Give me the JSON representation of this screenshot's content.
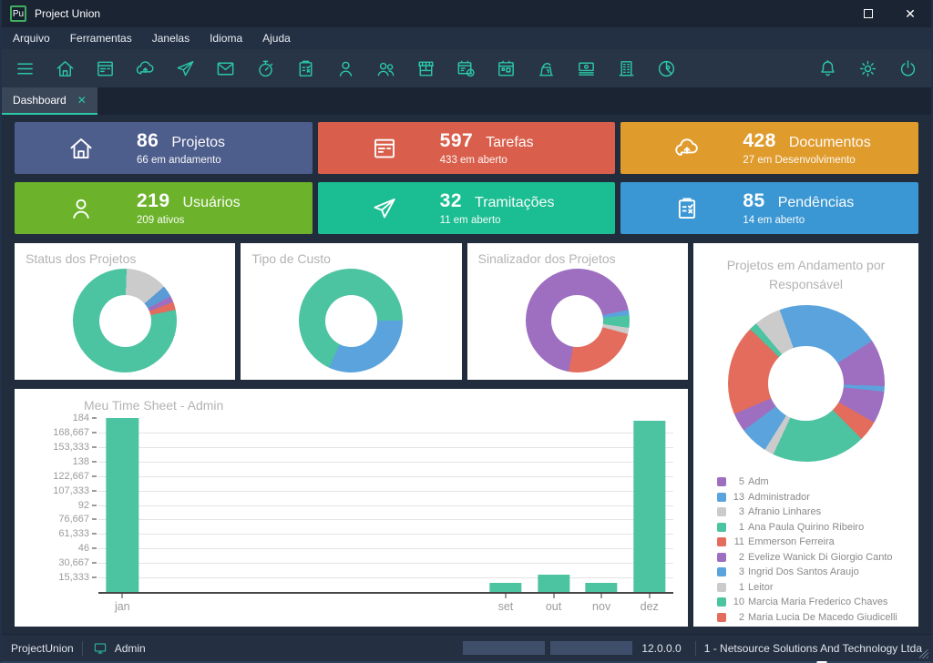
{
  "window": {
    "title": "Project Union",
    "logo_text": "Pu",
    "controls": [
      {
        "name": "minimize",
        "glyph": "─"
      },
      {
        "name": "maximize",
        "glyph": "□"
      },
      {
        "name": "close",
        "glyph": "✕"
      }
    ]
  },
  "menu_bar": {
    "items": [
      "Arquivo",
      "Ferramentas",
      "Janelas",
      "Idioma",
      "Ajuda"
    ]
  },
  "toolbar": {
    "accent_color": "#2cc7a5",
    "left_icons": [
      "hamburger-icon",
      "home-icon",
      "tasks-icon",
      "cloud-upload-icon",
      "send-icon",
      "mail-icon",
      "stopwatch-icon",
      "clipboard-icon",
      "user-icon",
      "users-icon",
      "store-icon",
      "schedule-icon",
      "calendar-icon",
      "meter-icon",
      "money-icon",
      "building-icon",
      "pie-chart-icon"
    ],
    "right_icons": [
      "bell-icon",
      "settings-icon",
      "power-icon"
    ]
  },
  "tabs": [
    {
      "label": "Dashboard",
      "active": true
    }
  ],
  "stat_cards": [
    {
      "icon": "home-icon",
      "value": "86",
      "label": "Projetos",
      "sub": "66 em andamento",
      "color": "#4d5d8c"
    },
    {
      "icon": "tasks-icon",
      "value": "597",
      "label": "Tarefas",
      "sub": "433 em aberto",
      "color": "#d95f4c"
    },
    {
      "icon": "cloud-upload-icon",
      "value": "428",
      "label": "Documentos",
      "sub": "27 em Desenvolvimento",
      "color": "#e09b2d"
    },
    {
      "icon": "user-icon",
      "value": "219",
      "label": "Usuários",
      "sub": "209 ativos",
      "color": "#6cb32b"
    },
    {
      "icon": "send-icon",
      "value": "32",
      "label": "Tramitações",
      "sub": "11 em aberto",
      "color": "#1bbd92"
    },
    {
      "icon": "clipboard-icon",
      "value": "85",
      "label": "Pendências",
      "sub": "14 em aberto",
      "color": "#3b97d3"
    }
  ],
  "chart_data": [
    {
      "type": "pie",
      "donut": true,
      "title": "Status dos Projetos",
      "rotate_deg": 2,
      "segments": [
        {
          "color": "#cbcbcb",
          "deg": 47
        },
        {
          "color": "#5b9bd5",
          "deg": 13
        },
        {
          "color": "#9e6fc0",
          "deg": 7
        },
        {
          "color": "#e36c5c",
          "deg": 9
        },
        {
          "color": "#4cc3a1",
          "deg": 284
        }
      ]
    },
    {
      "type": "pie",
      "donut": true,
      "title": "Tipo de Custo",
      "rotate_deg": 90,
      "segments": [
        {
          "color": "#5ba3dc",
          "deg": 115
        },
        {
          "color": "#4cc3a1",
          "deg": 245
        }
      ]
    },
    {
      "type": "pie",
      "donut": true,
      "title": "Sinalizador dos Projetos",
      "rotate_deg": 78,
      "segments": [
        {
          "color": "#5ba3dc",
          "deg": 6
        },
        {
          "color": "#4cc3a1",
          "deg": 14
        },
        {
          "color": "#cbcbcb",
          "deg": 7
        },
        {
          "color": "#e36c5c",
          "deg": 85
        },
        {
          "color": "#9e6fc0",
          "deg": 248
        }
      ]
    },
    {
      "type": "pie",
      "donut": true,
      "title": "Projetos em Andamento por  Responsável",
      "rotate_deg": 340,
      "segments": [
        {
          "color": "#5ba3dc",
          "deg": 77
        },
        {
          "color": "#9e6fc0",
          "deg": 35
        },
        {
          "color": "#5ba3dc",
          "deg": 4
        },
        {
          "color": "#9e6fc0",
          "deg": 24
        },
        {
          "color": "#e36c5c",
          "deg": 15
        },
        {
          "color": "#4cc3a1",
          "deg": 70
        },
        {
          "color": "#cbcbcb",
          "deg": 7
        },
        {
          "color": "#5ba3dc",
          "deg": 21
        },
        {
          "color": "#9e6fc0",
          "deg": 14
        },
        {
          "color": "#e36c5c",
          "deg": 67
        },
        {
          "color": "#4cc3a1",
          "deg": 6
        },
        {
          "color": "#cbcbcb",
          "deg": 20
        }
      ],
      "legend": [
        {
          "count": 5,
          "name": "Adm",
          "color": "#9e6fc0"
        },
        {
          "count": 13,
          "name": "Administrador",
          "color": "#5ba3dc"
        },
        {
          "count": 3,
          "name": "Afranio Linhares",
          "color": "#cbcbcb"
        },
        {
          "count": 1,
          "name": "Ana Paula Quirino Ribeiro",
          "color": "#4cc3a1"
        },
        {
          "count": 11,
          "name": "Emmerson Ferreira",
          "color": "#e36c5c"
        },
        {
          "count": 2,
          "name": "Evelize Wanick  Di Giorgio Canto",
          "color": "#9e6fc0"
        },
        {
          "count": 3,
          "name": "Ingrid Dos Santos Araujo",
          "color": "#5ba3dc"
        },
        {
          "count": 1,
          "name": "Leitor",
          "color": "#cbcbcb"
        },
        {
          "count": 10,
          "name": "Marcia Maria Frederico Chaves",
          "color": "#4cc3a1"
        },
        {
          "count": 2,
          "name": "Maria Lucia De Macedo Giudicelli",
          "color": "#e36c5c"
        }
      ]
    },
    {
      "type": "bar",
      "title": "Meu Time Sheet - Admin",
      "bar_color": "#4cc3a1",
      "ylim": [
        0,
        184
      ],
      "slots": 12,
      "y_ticks": [
        "184",
        "168,667",
        "153,333",
        "138",
        "122,667",
        "107,333",
        "92",
        "76,667",
        "61,333",
        "46",
        "30,667",
        "15,333"
      ],
      "bars": [
        {
          "label": "jan",
          "slot": 0,
          "value": 184
        },
        {
          "label": "set",
          "slot": 8,
          "value": 10
        },
        {
          "label": "out",
          "slot": 9,
          "value": 18
        },
        {
          "label": "nov",
          "slot": 10,
          "value": 10
        },
        {
          "label": "dez",
          "slot": 11,
          "value": 181
        }
      ]
    }
  ],
  "status_bar": {
    "app": "ProjectUnion",
    "icon": "monitor-icon",
    "user": "Admin",
    "version": "12.0.0.0",
    "company": "1 - Netsource Solutions And Technology Ltda"
  }
}
